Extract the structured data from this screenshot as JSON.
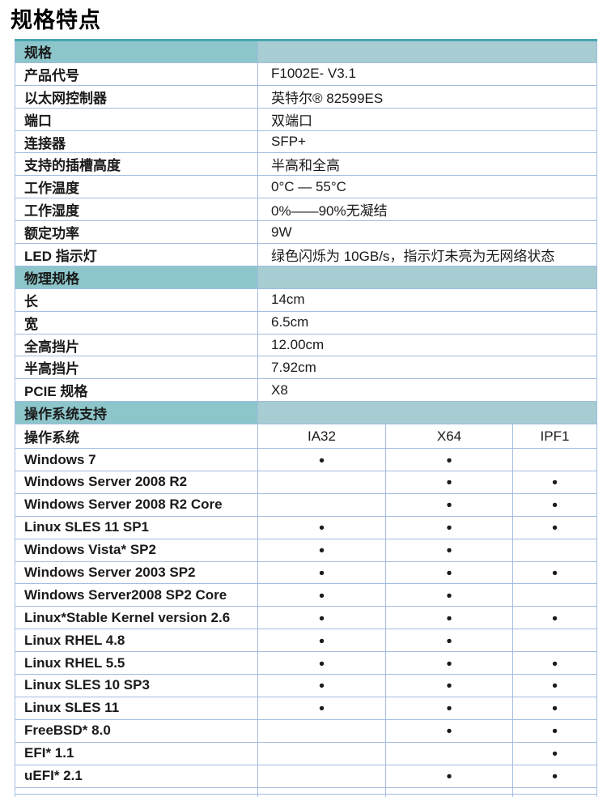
{
  "page_title": "规格特点",
  "dot_glyph": "●",
  "colors": {
    "section_header_bg_left": "#8CC6CB",
    "section_header_bg_right": "#A7CCD2",
    "table_top_border": "#48A6AF",
    "grid_border": "#A2BCE0",
    "text": "#1A1A1A"
  },
  "spec_sections": [
    {
      "header": "规格",
      "rows": [
        {
          "label": "产品代号",
          "value": "F1002E- V3.1"
        },
        {
          "label": "以太网控制器",
          "value": "英特尔® 82599ES"
        },
        {
          "label": "端口",
          "value": "双端口"
        },
        {
          "label": "连接器",
          "value": "SFP+"
        },
        {
          "label": "支持的插槽高度",
          "value": "半高和全高"
        },
        {
          "label": "工作温度",
          "value": "0°C — 55°C"
        },
        {
          "label": "工作湿度",
          "value": "0%——90%无凝结"
        },
        {
          "label": "额定功率",
          "value": "9W"
        },
        {
          "label": "LED 指示灯",
          "value": "绿色闪烁为 10GB/s，指示灯未亮为无网络状态"
        }
      ]
    },
    {
      "header": "物理规格",
      "rows": [
        {
          "label": "长",
          "value": "14cm"
        },
        {
          "label": "宽",
          "value": "6.5cm"
        },
        {
          "label": "全高挡片",
          "value": "12.00cm"
        },
        {
          "label": "半高挡片",
          "value": "7.92cm"
        },
        {
          "label": "PCIE 规格",
          "value": "X8"
        }
      ]
    }
  ],
  "os_support": {
    "header": "操作系统支持",
    "columns": [
      "操作系统",
      "IA32",
      "X64",
      "IPF1"
    ],
    "rows": [
      {
        "name": "Windows 7",
        "support": [
          1,
          1,
          0
        ]
      },
      {
        "name": "Windows Server 2008 R2",
        "support": [
          0,
          1,
          1
        ]
      },
      {
        "name": "Windows Server 2008 R2 Core",
        "support": [
          0,
          1,
          1
        ]
      },
      {
        "name": "Linux SLES 11 SP1",
        "support": [
          1,
          1,
          1
        ]
      },
      {
        "name": "Windows Vista* SP2",
        "support": [
          1,
          1,
          0
        ]
      },
      {
        "name": "Windows Server 2003 SP2",
        "support": [
          1,
          1,
          1
        ]
      },
      {
        "name": "Windows Server2008 SP2 Core",
        "support": [
          1,
          1,
          0
        ]
      },
      {
        "name": "Linux*Stable Kernel version 2.6",
        "support": [
          1,
          1,
          1
        ]
      },
      {
        "name": "Linux RHEL 4.8",
        "support": [
          1,
          1,
          0
        ]
      },
      {
        "name": "Linux RHEL 5.5",
        "support": [
          1,
          1,
          1
        ]
      },
      {
        "name": "Linux SLES 10 SP3",
        "support": [
          1,
          1,
          1
        ]
      },
      {
        "name": "Linux SLES 11",
        "support": [
          1,
          1,
          1
        ]
      },
      {
        "name": "FreeBSD* 8.0",
        "support": [
          0,
          1,
          1
        ]
      },
      {
        "name": "EFI* 1.1",
        "support": [
          0,
          0,
          1
        ]
      },
      {
        "name": "uEFI* 2.1",
        "support": [
          0,
          1,
          1
        ]
      }
    ]
  }
}
